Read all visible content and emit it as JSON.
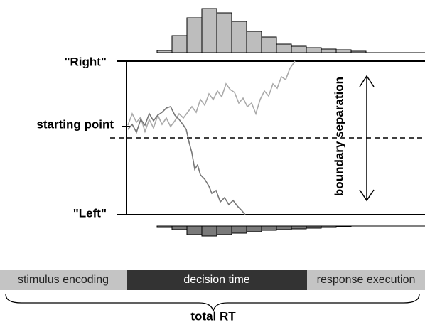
{
  "labels": {
    "upper_boundary": "\"Right\"",
    "starting_point": "starting point",
    "lower_boundary": "\"Left\"",
    "boundary_separation": "boundary separation"
  },
  "stages": {
    "encoding": "stimulus encoding",
    "decision": "decision time",
    "response": "response execution"
  },
  "total": "total RT"
}
